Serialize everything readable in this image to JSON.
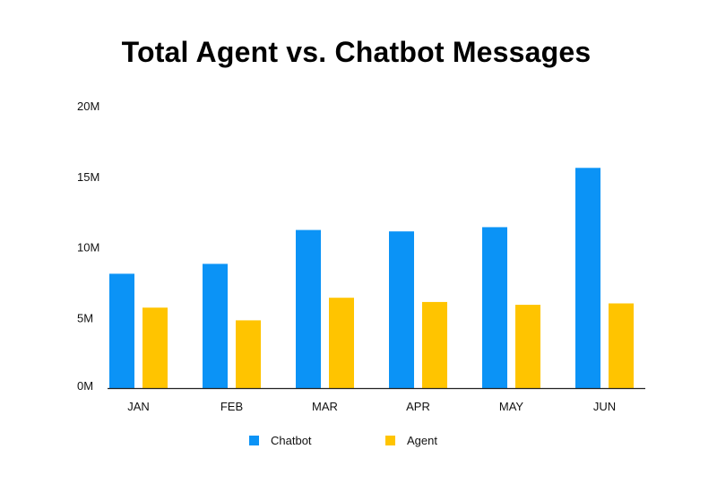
{
  "chart_data": {
    "type": "bar",
    "title": "Total Agent vs. Chatbot Messages",
    "xlabel": "",
    "ylabel": "",
    "categories": [
      "JAN",
      "FEB",
      "MAR",
      "APR",
      "MAY",
      "JUN"
    ],
    "series": [
      {
        "name": "Chatbot",
        "color": "#0b93f6",
        "values": [
          8.1,
          8.8,
          11.2,
          11.1,
          11.4,
          15.6
        ]
      },
      {
        "name": "Agent",
        "color": "#ffc400",
        "values": [
          5.7,
          4.8,
          6.4,
          6.1,
          5.9,
          6.0
        ]
      }
    ],
    "ylim": [
      0,
      20
    ],
    "yticks": [
      0,
      5,
      10,
      15,
      20
    ],
    "ytick_labels": [
      "0M",
      "5M",
      "10M",
      "15M",
      "20M"
    ],
    "grid": false,
    "legend_position": "bottom"
  }
}
